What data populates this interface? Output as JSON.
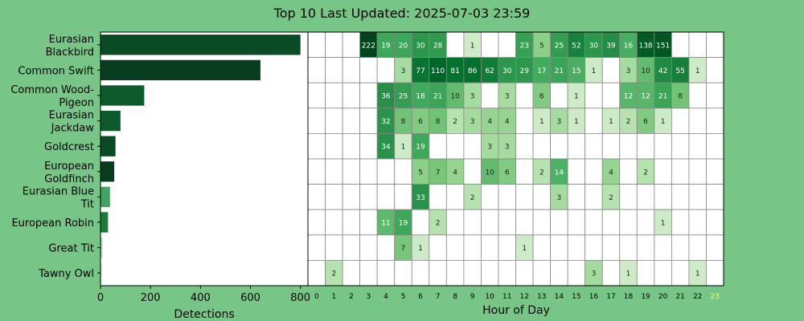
{
  "figure": {
    "title": "Top 10 Last Updated: 2025-07-03 23:59",
    "background": "#77c687"
  },
  "chart_data": [
    {
      "type": "bar",
      "orientation": "horizontal",
      "categories": [
        "Eurasian Blackbird",
        "Common Swift",
        "Common Wood-Pigeon",
        "Eurasian Jackdaw",
        "Goldcrest",
        "European Goldfinch",
        "Eurasian Blue Tit",
        "European Robin",
        "Great Tit",
        "Tawny Owl"
      ],
      "category_labels": [
        [
          "Eurasian",
          "Blackbird"
        ],
        [
          "Common Swift"
        ],
        [
          "Common Wood-",
          "Pigeon"
        ],
        [
          "Eurasian",
          "Jackdaw"
        ],
        [
          "Goldcrest"
        ],
        [
          "European",
          "Goldfinch"
        ],
        [
          "Eurasian Blue",
          "Tit"
        ],
        [
          "European Robin"
        ],
        [
          "Great Tit"
        ],
        [
          "Tawny Owl"
        ]
      ],
      "values": [
        800,
        640,
        175,
        80,
        60,
        55,
        38,
        30,
        8,
        5
      ],
      "bar_colors": [
        "#0a4a25",
        "#073d1e",
        "#0e5a2c",
        "#0e5a2c",
        "#0a4a25",
        "#073d1e",
        "#44a262",
        "#1a7a3c",
        "#b9e3b4",
        "#d6efd0"
      ],
      "xlabel": "Detections",
      "xticks": [
        0,
        200,
        400,
        600,
        800
      ],
      "xlim": [
        0,
        830
      ]
    },
    {
      "type": "heatmap",
      "xlabel": "Hour of Day",
      "x": [
        "0",
        "1",
        "2",
        "3",
        "4",
        "5",
        "6",
        "7",
        "8",
        "9",
        "10",
        "11",
        "12",
        "13",
        "14",
        "15",
        "16",
        "17",
        "18",
        "19",
        "20",
        "21",
        "22",
        "23"
      ],
      "highlight_tick": "23",
      "highlight_color": "#ffff44",
      "y": [
        "Eurasian Blackbird",
        "Common Swift",
        "Common Wood-Pigeon",
        "Eurasian Jackdaw",
        "Goldcrest",
        "European Goldfinch",
        "Eurasian Blue Tit",
        "European Robin",
        "Great Tit",
        "Tawny Owl"
      ],
      "values": [
        [
          null,
          null,
          null,
          222,
          19,
          20,
          30,
          28,
          null,
          1,
          null,
          null,
          23,
          5,
          25,
          52,
          30,
          39,
          16,
          138,
          151,
          null,
          null,
          null
        ],
        [
          null,
          null,
          null,
          null,
          null,
          3,
          77,
          110,
          81,
          86,
          62,
          30,
          29,
          17,
          21,
          15,
          1,
          null,
          3,
          10,
          42,
          55,
          1,
          null
        ],
        [
          null,
          null,
          null,
          null,
          36,
          25,
          18,
          21,
          10,
          3,
          null,
          3,
          null,
          6,
          null,
          1,
          null,
          null,
          12,
          12,
          21,
          8,
          null,
          null
        ],
        [
          null,
          null,
          null,
          null,
          32,
          8,
          6,
          8,
          2,
          3,
          4,
          4,
          null,
          1,
          3,
          1,
          null,
          1,
          2,
          6,
          1,
          null,
          null,
          null
        ],
        [
          null,
          null,
          null,
          null,
          34,
          1,
          19,
          null,
          null,
          null,
          3,
          3,
          null,
          null,
          null,
          null,
          null,
          null,
          null,
          null,
          null,
          null,
          null,
          null
        ],
        [
          null,
          null,
          null,
          null,
          null,
          null,
          5,
          7,
          4,
          null,
          10,
          6,
          null,
          2,
          14,
          null,
          null,
          4,
          null,
          2,
          null,
          null,
          null,
          null
        ],
        [
          null,
          null,
          null,
          null,
          null,
          null,
          33,
          null,
          null,
          2,
          null,
          null,
          null,
          null,
          3,
          null,
          null,
          2,
          null,
          null,
          null,
          null,
          null,
          null
        ],
        [
          null,
          null,
          null,
          null,
          11,
          19,
          null,
          2,
          null,
          null,
          null,
          null,
          null,
          null,
          null,
          null,
          null,
          null,
          null,
          null,
          1,
          null,
          null,
          null
        ],
        [
          null,
          null,
          null,
          null,
          null,
          7,
          1,
          null,
          null,
          null,
          null,
          null,
          1,
          null,
          null,
          null,
          null,
          null,
          null,
          null,
          null,
          null,
          null,
          null
        ],
        [
          null,
          2,
          null,
          null,
          null,
          null,
          null,
          null,
          null,
          null,
          null,
          null,
          null,
          null,
          null,
          null,
          3,
          null,
          1,
          null,
          null,
          null,
          1,
          null
        ]
      ],
      "colormap": "Greens"
    }
  ]
}
